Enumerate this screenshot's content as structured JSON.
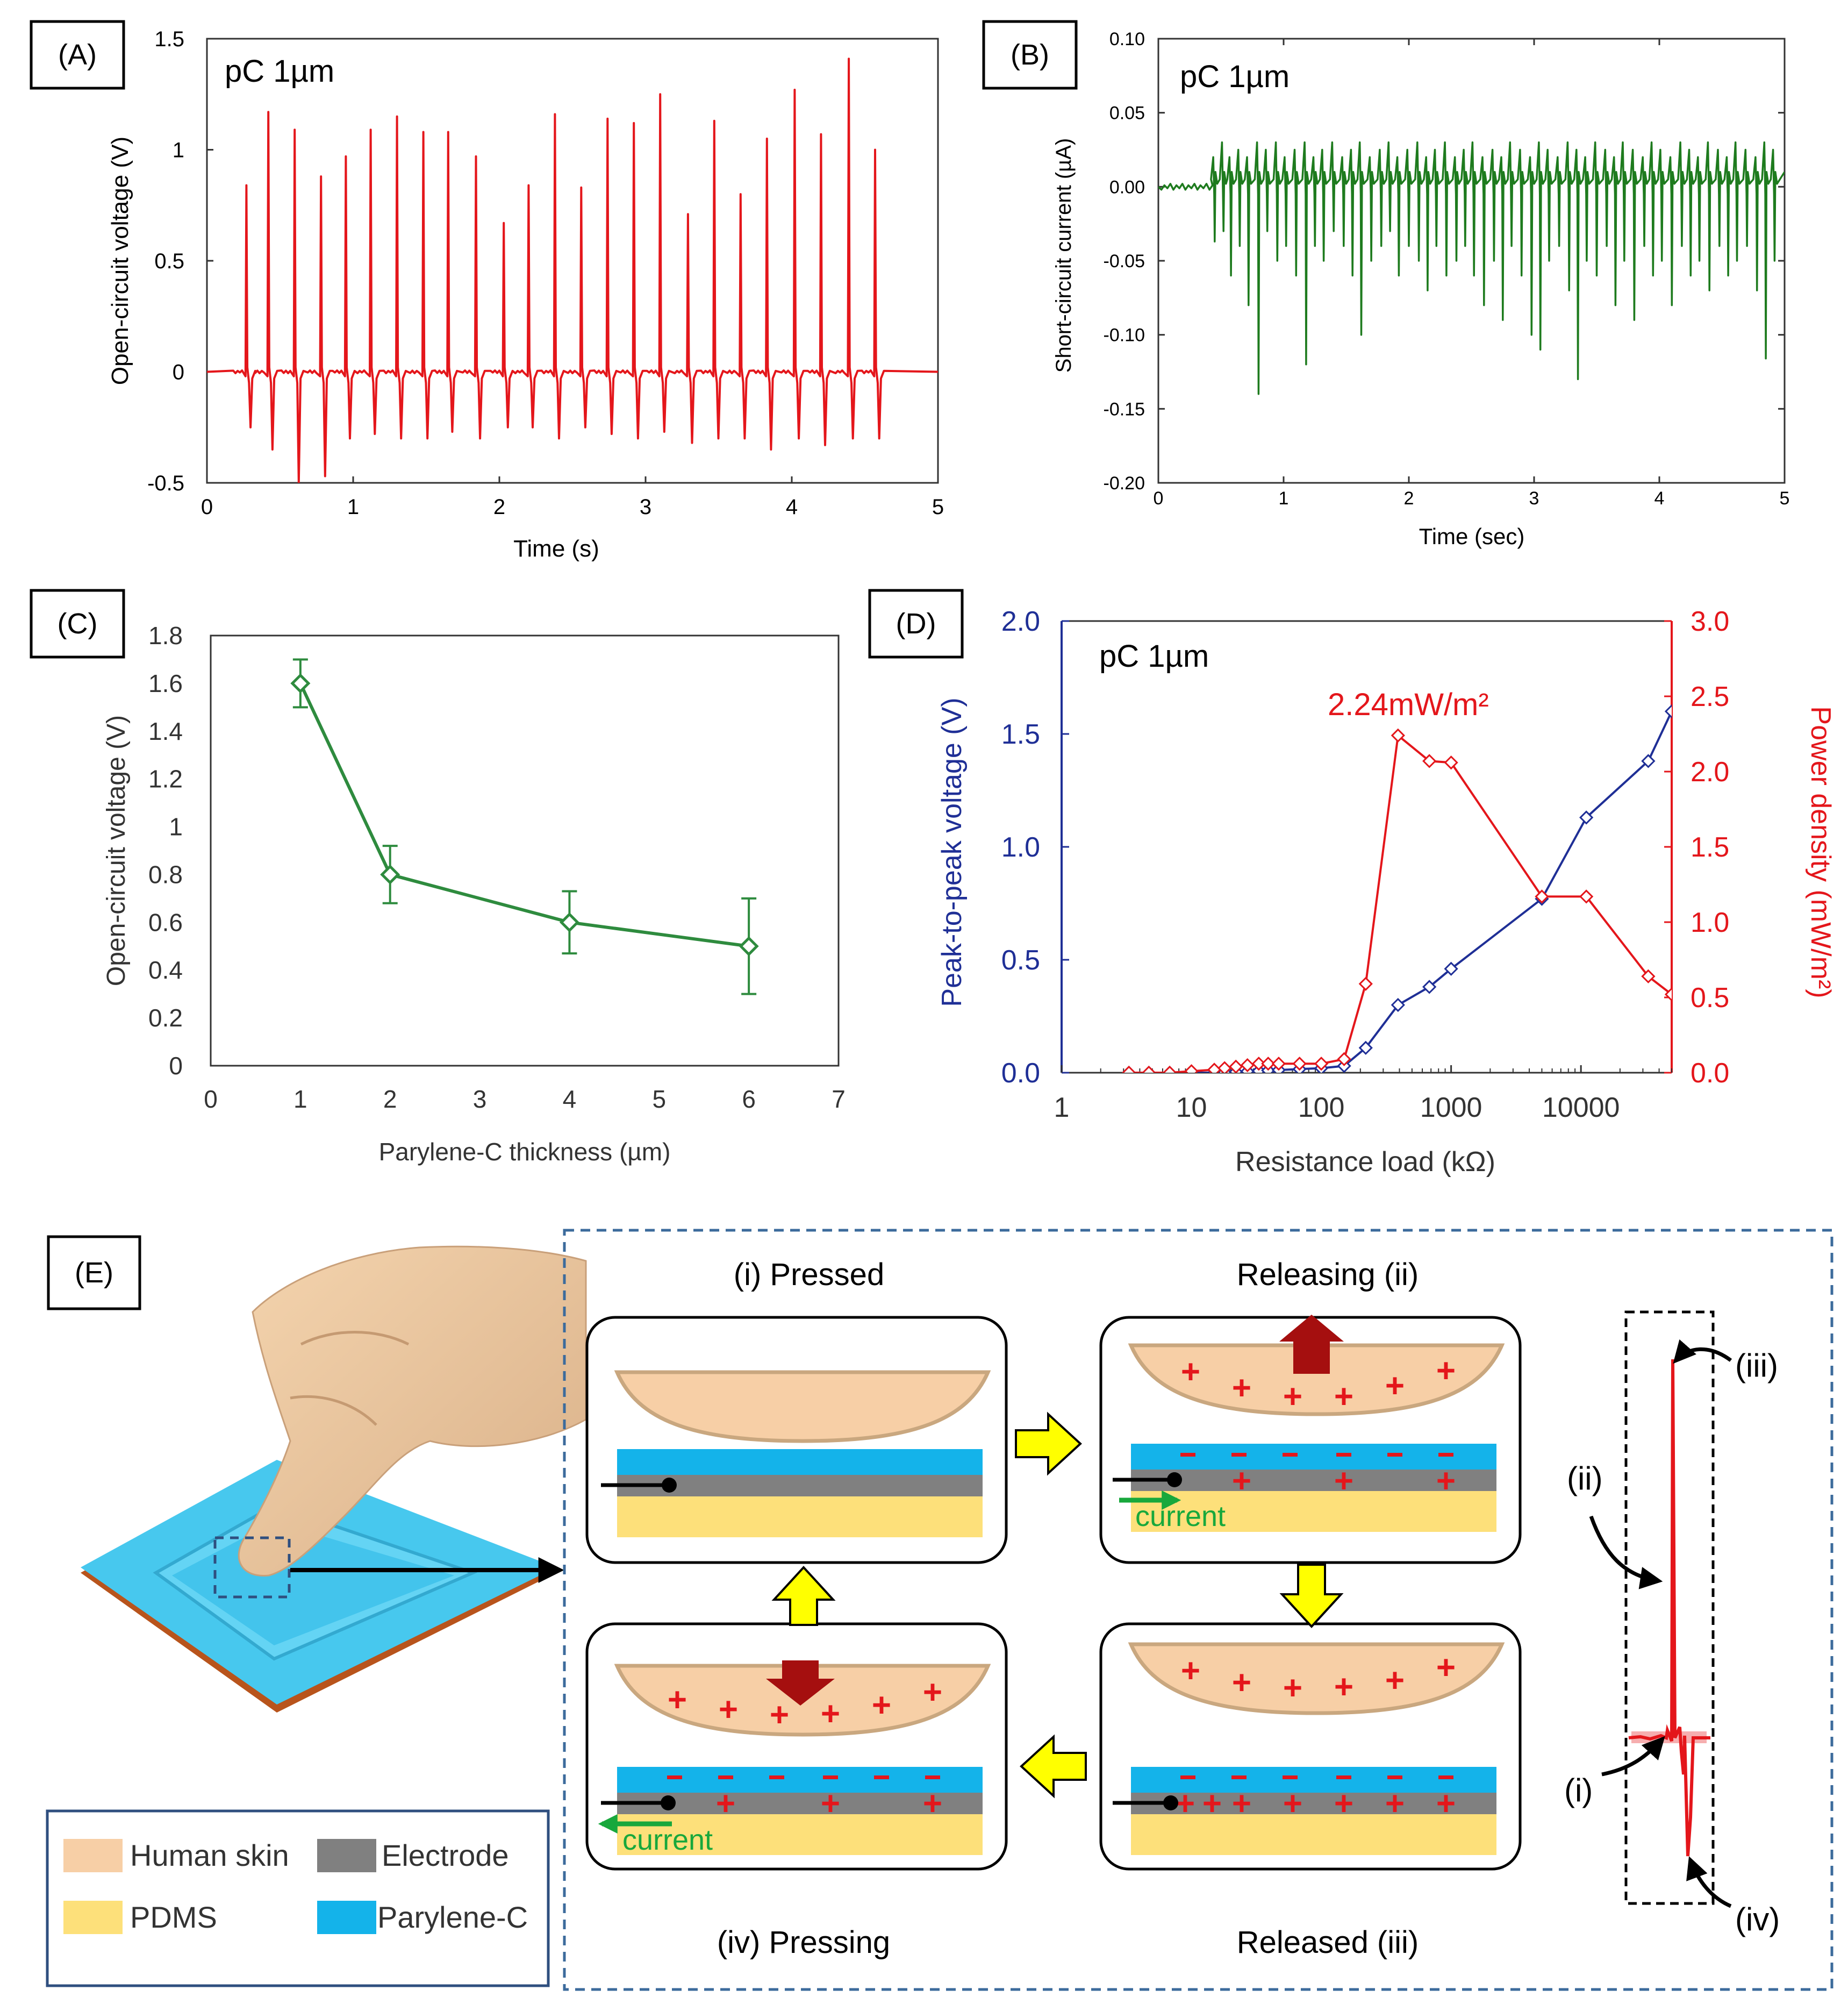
{
  "colors": {
    "red": "#e4161b",
    "green": "#1e7b1e",
    "green_c": "#2e8b3e",
    "blue": "#1f2f96",
    "skin": "#f7cfa6",
    "skin_edge": "#c9a77f",
    "pdms": "#fde07a",
    "electrode": "#808080",
    "parylene": "#14b3ea",
    "dashed_border": "#3c6b9c",
    "arrow_yellow": "#ffff00",
    "arrow_dark_red": "#a50f0f"
  },
  "panel_a": {
    "label": "(A)",
    "annotation": "pC 1µm",
    "ylabel": "Open-circuit voltage (V)",
    "xlabel": "Time (s)",
    "xticks": [
      "0",
      "1",
      "2",
      "3",
      "4",
      "5"
    ],
    "yticks": [
      "-0.5",
      "0",
      "0.5",
      "1",
      "1.5"
    ]
  },
  "panel_b": {
    "label": "(B)",
    "annotation": "pC 1µm",
    "ylabel": "Short-circuit current (µA)",
    "xlabel": "Time (sec)",
    "xticks": [
      "0",
      "1",
      "2",
      "3",
      "4",
      "5"
    ],
    "yticks": [
      "-0.20",
      "-0.15",
      "-0.10",
      "-0.05",
      "0.00",
      "0.05",
      "0.10"
    ]
  },
  "panel_c": {
    "label": "(C)",
    "ylabel": "Open-circuit voltage (V)",
    "xlabel": "Parylene-C thickness (µm)",
    "xticks": [
      "0",
      "1",
      "2",
      "3",
      "4",
      "5",
      "6",
      "7"
    ],
    "yticks": [
      "0",
      "0.2",
      "0.4",
      "0.6",
      "0.8",
      "1",
      "1.2",
      "1.4",
      "1.6",
      "1.8"
    ]
  },
  "panel_d": {
    "label": "(D)",
    "annotation": "pC 1µm",
    "peak_label": "2.24mW/m²",
    "ylabel_left": "Peak-to-peak voltage (V)",
    "ylabel_right": "Power density (mW/m²)",
    "xlabel": "Resistance load (kΩ)",
    "xticks": [
      "1",
      "10",
      "100",
      "1000",
      "10000"
    ],
    "yticks_left": [
      "0.0",
      "0.5",
      "1.0",
      "1.5",
      "2.0"
    ],
    "yticks_right": [
      "0.0",
      "0.5",
      "1.0",
      "1.5",
      "2.0",
      "2.5",
      "3.0"
    ]
  },
  "panel_e": {
    "label": "(E)",
    "step_i": "(i) Pressed",
    "step_ii": "Releasing (ii)",
    "step_iii": "Released (iii)",
    "step_iv": "(iv) Pressing",
    "current_label": "current",
    "trace_label_i": "(i)",
    "trace_label_ii": "(ii)",
    "trace_label_iii": "(iii)",
    "trace_label_iv": "(iv)",
    "legend": [
      {
        "label": "Human skin",
        "color": "#f7cfa6"
      },
      {
        "label": "Electrode",
        "color": "#808080"
      },
      {
        "label": "PDMS",
        "color": "#fde07a"
      },
      {
        "label": "Parylene-C",
        "color": "#14b3ea"
      }
    ]
  },
  "chart_data": [
    {
      "id": "A",
      "type": "line",
      "title": "pC 1µm",
      "xlabel": "Time (s)",
      "ylabel": "Open-circuit voltage (V)",
      "xlim": [
        0,
        5
      ],
      "ylim": [
        -0.5,
        1.5
      ],
      "series": [
        {
          "name": "Open-circuit voltage spikes",
          "color": "#e4161b",
          "spike_times": [
            0.27,
            0.42,
            0.6,
            0.78,
            0.95,
            1.12,
            1.3,
            1.48,
            1.65,
            1.84,
            2.03,
            2.2,
            2.38,
            2.56,
            2.74,
            2.92,
            3.1,
            3.29,
            3.47,
            3.65,
            3.83,
            4.02,
            4.2,
            4.39,
            4.57
          ],
          "peak_values": [
            0.84,
            1.17,
            1.09,
            0.88,
            0.97,
            1.09,
            1.15,
            1.08,
            1.08,
            0.97,
            0.67,
            0.84,
            1.16,
            0.83,
            1.14,
            1.12,
            1.25,
            0.71,
            1.13,
            0.8,
            1.05,
            1.27,
            1.07,
            1.41,
            1.0
          ],
          "trough_values": [
            -0.25,
            -0.35,
            -0.5,
            -0.47,
            -0.3,
            -0.28,
            -0.3,
            -0.3,
            -0.27,
            -0.3,
            -0.25,
            -0.25,
            -0.3,
            -0.25,
            -0.28,
            -0.3,
            -0.27,
            -0.32,
            -0.3,
            -0.3,
            -0.35,
            -0.3,
            -0.33,
            -0.3,
            -0.3
          ]
        }
      ]
    },
    {
      "id": "B",
      "type": "line",
      "title": "pC 1µm",
      "xlabel": "Time (sec)",
      "ylabel": "Short-circuit current (µA)",
      "xlim": [
        0,
        5
      ],
      "ylim": [
        -0.2,
        0.1
      ],
      "series": [
        {
          "name": "Short-circuit current",
          "color": "#1e7b1e",
          "spike_times": [
            0.45,
            0.52,
            0.58,
            0.65,
            0.72,
            0.8,
            0.87,
            0.95,
            1.02,
            1.1,
            1.18,
            1.25,
            1.32,
            1.4,
            1.48,
            1.55,
            1.62,
            1.7,
            1.78,
            1.85,
            1.92,
            2.0,
            2.08,
            2.15,
            2.22,
            2.3,
            2.38,
            2.45,
            2.52,
            2.6,
            2.68,
            2.75,
            2.82,
            2.9,
            2.98,
            3.05,
            3.12,
            3.2,
            3.28,
            3.35,
            3.42,
            3.5,
            3.58,
            3.65,
            3.72,
            3.8,
            3.88,
            3.95,
            4.02,
            4.1,
            4.18,
            4.25,
            4.32,
            4.4,
            4.48,
            4.55,
            4.62,
            4.7,
            4.78,
            4.85,
            4.92
          ],
          "peak_values": [
            0.02,
            0.03,
            0.02,
            0.025,
            0.02,
            0.03,
            0.025,
            0.03,
            0.02,
            0.025,
            0.03,
            0.02,
            0.025,
            0.03,
            0.02,
            0.025,
            0.03,
            0.02,
            0.025,
            0.03,
            0.02,
            0.025,
            0.03,
            0.02,
            0.025,
            0.03,
            0.02,
            0.025,
            0.03,
            0.02,
            0.025,
            0.02,
            0.03,
            0.025,
            0.02,
            0.03,
            0.025,
            0.02,
            0.03,
            0.025,
            0.02,
            0.03,
            0.025,
            0.02,
            0.03,
            0.025,
            0.02,
            0.03,
            0.025,
            0.02,
            0.03,
            0.025,
            0.02,
            0.03,
            0.025,
            0.02,
            0.03,
            0.025,
            0.02,
            0.03,
            0.025
          ],
          "trough_values": [
            -0.037,
            -0.03,
            -0.06,
            -0.04,
            -0.08,
            -0.14,
            -0.03,
            -0.05,
            -0.04,
            -0.06,
            -0.12,
            -0.04,
            -0.05,
            -0.03,
            -0.04,
            -0.06,
            -0.1,
            -0.05,
            -0.04,
            -0.03,
            -0.06,
            -0.04,
            -0.05,
            -0.07,
            -0.04,
            -0.06,
            -0.05,
            -0.04,
            -0.06,
            -0.08,
            -0.05,
            -0.09,
            -0.04,
            -0.06,
            -0.1,
            -0.11,
            -0.05,
            -0.04,
            -0.07,
            -0.13,
            -0.05,
            -0.06,
            -0.04,
            -0.08,
            -0.05,
            -0.09,
            -0.04,
            -0.06,
            -0.05,
            -0.08,
            -0.04,
            -0.06,
            -0.05,
            -0.07,
            -0.04,
            -0.06,
            -0.05,
            -0.04,
            -0.07,
            -0.116,
            -0.05
          ]
        }
      ]
    },
    {
      "id": "C",
      "type": "line",
      "xlabel": "Parylene-C thickness (µm)",
      "ylabel": "Open-circuit voltage (V)",
      "xlim": [
        0,
        7
      ],
      "ylim": [
        0,
        1.8
      ],
      "series": [
        {
          "name": "Open-circuit voltage",
          "color": "#2e8b3e",
          "x": [
            1,
            2,
            4,
            6
          ],
          "y": [
            1.6,
            0.8,
            0.6,
            0.5
          ],
          "err_upper": [
            1.7,
            0.92,
            0.73,
            0.7
          ],
          "err_lower": [
            1.5,
            0.68,
            0.47,
            0.3
          ]
        }
      ]
    },
    {
      "id": "D",
      "type": "line",
      "xlabel": "Resistance load (kΩ)",
      "ylabel": "Peak-to-peak voltage (V)",
      "ylabel_right": "Power density (mW/m²)",
      "xscale": "log",
      "xlim": [
        1,
        50000
      ],
      "ylim": [
        0,
        2.0
      ],
      "ylim_right": [
        0,
        3.0
      ],
      "annotation": "2.24mW/m²",
      "series": [
        {
          "name": "Peak-to-peak voltage",
          "axis": "left",
          "color": "#1f2f96",
          "x": [
            3.3,
            4.7,
            6.8,
            10,
            15,
            18,
            22,
            27,
            33,
            39,
            47,
            68,
            100,
            150,
            220,
            390,
            680,
            1000,
            5000,
            11000,
            33000,
            50000
          ],
          "y": [
            0,
            0,
            0,
            0,
            0,
            0.002,
            0.004,
            0.006,
            0.008,
            0.01,
            0.012,
            0.016,
            0.02,
            0.03,
            0.11,
            0.3,
            0.38,
            0.46,
            0.77,
            1.13,
            1.38,
            1.6
          ]
        },
        {
          "name": "Power density",
          "axis": "right",
          "color": "#e4161b",
          "x": [
            3.3,
            4.7,
            6.8,
            10,
            15,
            18,
            22,
            27,
            33,
            39,
            47,
            68,
            100,
            150,
            220,
            390,
            680,
            1000,
            5000,
            11000,
            33000,
            50000
          ],
          "y": [
            0,
            0,
            0,
            0.01,
            0.02,
            0.03,
            0.04,
            0.05,
            0.06,
            0.06,
            0.06,
            0.06,
            0.06,
            0.09,
            0.59,
            2.24,
            2.07,
            2.06,
            1.17,
            1.17,
            0.64,
            0.52
          ]
        }
      ]
    }
  ]
}
